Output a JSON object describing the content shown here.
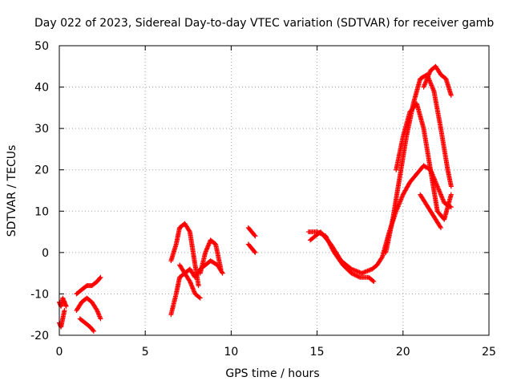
{
  "chart_data": {
    "type": "scatter",
    "title": "Day 022 of 2023, Sidereal Day-to-day VTEC variation (SDTVAR) for receiver gamb",
    "xlabel": "GPS time / hours",
    "ylabel": "SDTVAR / TECUs",
    "xlim": [
      0,
      25
    ],
    "ylim": [
      -20,
      50
    ],
    "xticks": [
      0,
      5,
      10,
      15,
      20,
      25
    ],
    "yticks": [
      -20,
      -10,
      0,
      10,
      20,
      30,
      40,
      50
    ],
    "grid": true,
    "marker": "+",
    "color": "#ff0000",
    "series": [
      {
        "name": "seg-0a",
        "x": [
          0.0,
          0.1,
          0.2,
          0.3,
          0.4
        ],
        "y": [
          -12,
          -13,
          -11,
          -12,
          -13
        ]
      },
      {
        "name": "seg-0b",
        "x": [
          0.0,
          0.1,
          0.2,
          0.3
        ],
        "y": [
          -17,
          -18,
          -16,
          -14
        ]
      },
      {
        "name": "seg-1a",
        "x": [
          1.0,
          1.3,
          1.6,
          1.9,
          2.2,
          2.4
        ],
        "y": [
          -10,
          -9,
          -8,
          -8,
          -7,
          -6
        ]
      },
      {
        "name": "seg-1b",
        "x": [
          1.0,
          1.3,
          1.6,
          1.9,
          2.2,
          2.4
        ],
        "y": [
          -14,
          -12,
          -11,
          -12,
          -14,
          -16
        ]
      },
      {
        "name": "seg-1c",
        "x": [
          1.2,
          1.5,
          1.8,
          2.0
        ],
        "y": [
          -16,
          -17,
          -18,
          -19
        ]
      },
      {
        "name": "seg-2a",
        "x": [
          6.5,
          6.8,
          7.0,
          7.3,
          7.6,
          7.9,
          8.1
        ],
        "y": [
          -2,
          2,
          6,
          7,
          5,
          -3,
          -8
        ]
      },
      {
        "name": "seg-2b",
        "x": [
          6.5,
          6.8,
          7.0,
          7.3,
          7.6,
          7.9,
          8.2
        ],
        "y": [
          -15,
          -10,
          -6,
          -5,
          -7,
          -10,
          -11
        ]
      },
      {
        "name": "seg-2c",
        "x": [
          7.0,
          7.3,
          7.6,
          7.9,
          8.2,
          8.5,
          8.8,
          9.2,
          9.5
        ],
        "y": [
          -3,
          -5,
          -4,
          -6,
          -4,
          -3,
          -2,
          -3,
          -5
        ]
      },
      {
        "name": "seg-2d",
        "x": [
          8.2,
          8.5,
          8.8,
          9.1,
          9.4
        ],
        "y": [
          -5,
          0,
          3,
          2,
          -4
        ]
      },
      {
        "name": "seg-3a",
        "x": [
          11.0,
          11.2,
          11.4
        ],
        "y": [
          6,
          5,
          4
        ]
      },
      {
        "name": "seg-3b",
        "x": [
          11.0,
          11.2,
          11.4
        ],
        "y": [
          2,
          1,
          0
        ]
      },
      {
        "name": "seg-4a",
        "x": [
          14.5,
          15.0,
          15.5,
          16.0,
          16.5,
          17.0,
          17.5,
          18.0,
          18.3
        ],
        "y": [
          5,
          5,
          4,
          0,
          -3,
          -5,
          -6,
          -6,
          -7
        ]
      },
      {
        "name": "seg-4b",
        "x": [
          14.6,
          15.2,
          15.8,
          16.4,
          17.0,
          17.6,
          18.2,
          18.5,
          18.8,
          19.2,
          19.6,
          20.0,
          20.4,
          20.8,
          21.2,
          21.6,
          22.0,
          22.4,
          22.8
        ],
        "y": [
          3,
          5,
          2,
          -2,
          -4,
          -5,
          -4,
          -3,
          -1,
          5,
          10,
          14,
          17,
          19,
          21,
          20,
          16,
          12,
          11
        ]
      },
      {
        "name": "seg-4c",
        "x": [
          19.0,
          19.4,
          19.8,
          20.2,
          20.6,
          21.0,
          21.4,
          21.8,
          22.2,
          22.6,
          22.8
        ],
        "y": [
          0,
          8,
          18,
          28,
          36,
          42,
          43,
          39,
          30,
          20,
          16
        ]
      },
      {
        "name": "seg-4d",
        "x": [
          19.6,
          20.0,
          20.4,
          20.8,
          21.2,
          21.6,
          22.0,
          22.4,
          22.8
        ],
        "y": [
          20,
          28,
          34,
          36,
          30,
          20,
          10,
          8,
          14
        ]
      },
      {
        "name": "seg-4e",
        "x": [
          21.2,
          21.6,
          21.9,
          22.2,
          22.5,
          22.8
        ],
        "y": [
          40,
          44,
          45,
          43,
          42,
          38
        ]
      },
      {
        "name": "seg-4f",
        "x": [
          21.0,
          21.3,
          21.6,
          21.9,
          22.2
        ],
        "y": [
          14,
          12,
          10,
          8,
          6
        ]
      }
    ]
  }
}
